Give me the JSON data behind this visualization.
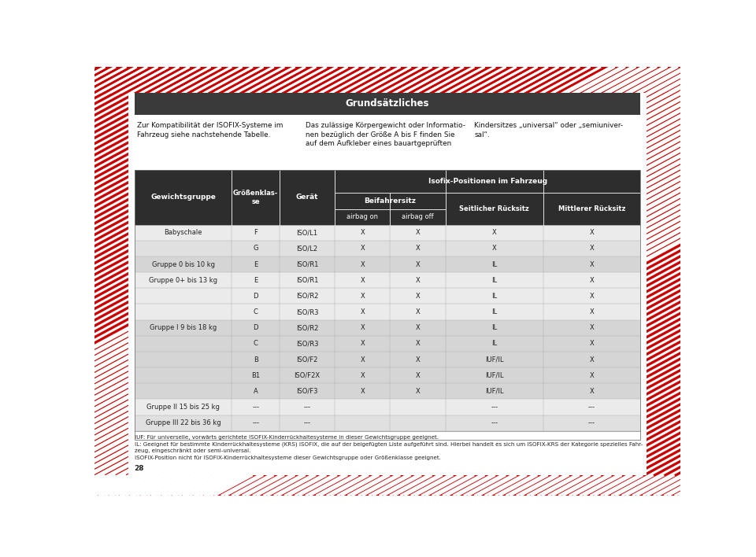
{
  "title": "Grundsätzliches",
  "title_bg": "#3a3a3a",
  "title_color": "#ffffff",
  "intro_texts": [
    "Zur Kompatibilität der ISOFIX-Systeme im\nFahrzeug siehe nachstehende Tabelle.",
    "Das zulässige Körpergewicht oder Informatio-\nnen bezüglich der Größe A bis F finden Sie\nauf dem Aufkleber eines bauartgeprüften",
    "Kindersitzes „universal“ oder „semiuniver-\nsal“."
  ],
  "header_bg": "#2d2d2d",
  "header_color": "#ffffff",
  "row_colors": [
    "#ebebeb",
    "#e0e0e0",
    "#d5d5d5",
    "#ebebeb",
    "#ebebeb",
    "#ebebeb",
    "#d5d5d5",
    "#d5d5d5",
    "#d5d5d5",
    "#d5d5d5",
    "#d5d5d5",
    "#ebebeb",
    "#e0e0e0"
  ],
  "footnote_text": "IUF: Für universelle, vorwärts gerichtete ISOFIX-Kinderrückhaltesysteme in dieser Gewichtsgruppe geeignet.\nIL: Geeignet für bestimmte Kinderrückhaltesysteme (KRS) ISOFIX, die auf der beigefügten Liste aufgeführt sind. Hierbei handelt es sich um ISOFIX-KRS der Kategorie spezielles Fahr-\nzeug, eingeschränkt oder semi-universal.\nISOFIX-Position nicht für ISOFIX-Kinderrückhaltesysteme dieser Gewichtsgruppe oder Größenklasse geeignet.",
  "page_number": "28",
  "table_data": [
    [
      "Babyschale",
      "F",
      "ISO/L1",
      "X",
      "X",
      "X",
      "X"
    ],
    [
      "",
      "G",
      "ISO/L2",
      "X",
      "X",
      "X",
      "X"
    ],
    [
      "Gruppe 0 bis 10 kg",
      "E",
      "ISO/R1",
      "X",
      "X",
      "IL",
      "X"
    ],
    [
      "Gruppe 0+ bis 13 kg",
      "E",
      "ISO/R1",
      "X",
      "X",
      "IL",
      "X"
    ],
    [
      "",
      "D",
      "ISO/R2",
      "X",
      "X",
      "IL",
      "X"
    ],
    [
      "",
      "C",
      "ISO/R3",
      "X",
      "X",
      "IL",
      "X"
    ],
    [
      "Gruppe I 9 bis 18 kg",
      "D",
      "ISO/R2",
      "X",
      "X",
      "IL",
      "X"
    ],
    [
      "",
      "C",
      "ISO/R3",
      "X",
      "X",
      "IL",
      "X"
    ],
    [
      "",
      "B",
      "ISO/F2",
      "X",
      "X",
      "IUF/IL",
      "X"
    ],
    [
      "",
      "B1",
      "ISO/F2X",
      "X",
      "X",
      "IUF/IL",
      "X"
    ],
    [
      "",
      "A",
      "ISO/F3",
      "X",
      "X",
      "IUF/IL",
      "X"
    ],
    [
      "Gruppe II 15 bis 25 kg",
      "---",
      "---",
      "",
      "",
      "---",
      "---"
    ],
    [
      "Gruppe III 22 bis 36 kg",
      "---",
      "---",
      "",
      "",
      "---",
      "---"
    ]
  ],
  "col_props": [
    0.185,
    0.09,
    0.105,
    0.105,
    0.105,
    0.185,
    0.185
  ],
  "background_color": "#ffffff",
  "stripe_color": "#cc0000",
  "stripe_white": "#ffffff"
}
